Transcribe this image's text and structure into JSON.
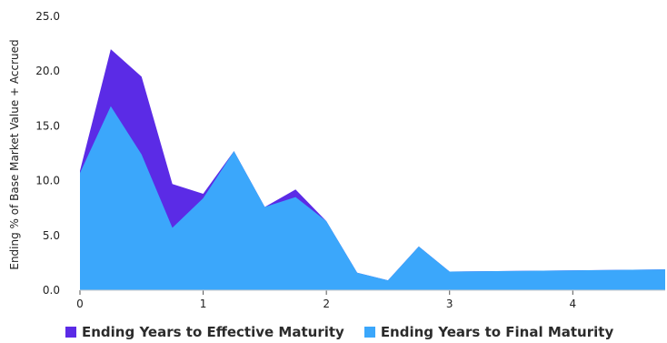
{
  "chart_data": {
    "type": "area",
    "ylabel": "Ending % of Base Market Value + Accrued",
    "xlabel": "",
    "xlim": [
      0,
      4.75
    ],
    "ylim": [
      0,
      25
    ],
    "x_ticks": [
      0,
      1,
      2,
      3,
      4
    ],
    "x_tick_labels": [
      "0",
      "1",
      "2",
      "3",
      "4"
    ],
    "y_ticks": [
      0,
      5,
      10,
      15,
      20,
      25
    ],
    "y_tick_labels": [
      "0.0",
      "5.0",
      "10.0",
      "15.0",
      "20.0",
      "25.0"
    ],
    "grid": false,
    "legend_placement": "bottom",
    "series": [
      {
        "name": "Ending Years to Effective Maturity",
        "color": "#5b2be6",
        "x": [
          0,
          0.25,
          0.5,
          0.75,
          1,
          1.25,
          1.5,
          1.75,
          2,
          2.25,
          2.5,
          2.75,
          3,
          4.75
        ],
        "values": [
          10.9,
          22.0,
          19.5,
          9.7,
          8.8,
          12.7,
          7.6,
          9.2,
          6.3,
          1.6,
          0.9,
          4.0,
          1.7,
          1.9
        ]
      },
      {
        "name": "Ending Years to Final Maturity",
        "color": "#3ba7fb",
        "x": [
          0,
          0.25,
          0.5,
          0.75,
          1,
          1.25,
          1.5,
          1.75,
          2,
          2.25,
          2.5,
          2.75,
          3,
          4.75
        ],
        "values": [
          10.7,
          16.8,
          12.4,
          5.7,
          8.4,
          12.7,
          7.6,
          8.5,
          6.3,
          1.6,
          0.9,
          4.0,
          1.7,
          1.9
        ]
      }
    ]
  }
}
